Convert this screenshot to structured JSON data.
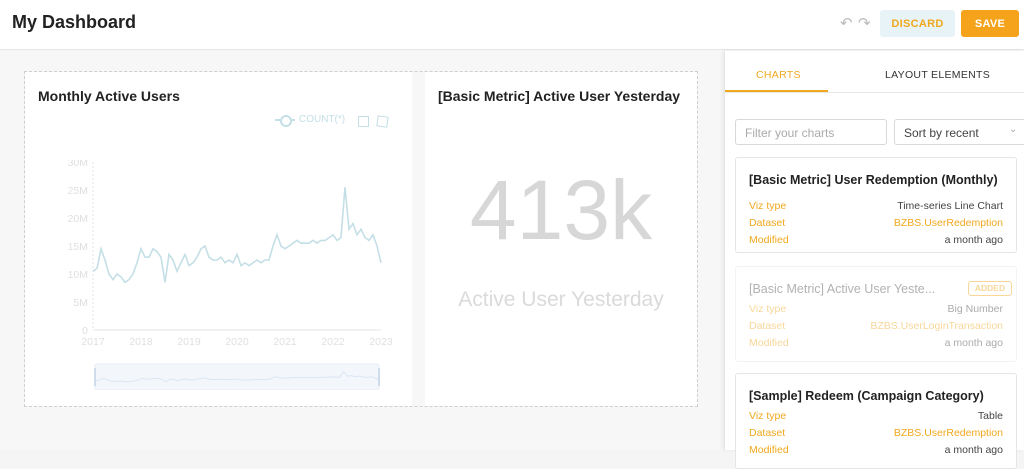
{
  "header": {
    "title": "My Dashboard",
    "undo_icon": "undo-icon",
    "redo_icon": "redo-icon",
    "discard_label": "DISCARD",
    "save_label": "SAVE"
  },
  "colors": {
    "accent": "#f5a31a",
    "series": "#c4dfe6"
  },
  "cards": {
    "mau": {
      "title": "Monthly Active Users",
      "legend": "COUNT(*)"
    },
    "metric": {
      "title": "[Basic Metric] Active User Yesterday",
      "value": "413k",
      "subheader": "Active User Yesterday"
    }
  },
  "chart_data": {
    "type": "line",
    "title": "Monthly Active Users",
    "series": [
      {
        "name": "COUNT(*)",
        "x": [
          "2017-01",
          "2017-02",
          "2017-03",
          "2017-04",
          "2017-05",
          "2017-06",
          "2017-07",
          "2017-08",
          "2017-09",
          "2017-10",
          "2017-11",
          "2017-12",
          "2018-01",
          "2018-02",
          "2018-03",
          "2018-04",
          "2018-05",
          "2018-06",
          "2018-07",
          "2018-08",
          "2018-09",
          "2018-10",
          "2018-11",
          "2018-12",
          "2019-01",
          "2019-02",
          "2019-03",
          "2019-04",
          "2019-05",
          "2019-06",
          "2019-07",
          "2019-08",
          "2019-09",
          "2019-10",
          "2019-11",
          "2019-12",
          "2020-01",
          "2020-02",
          "2020-03",
          "2020-04",
          "2020-05",
          "2020-06",
          "2020-07",
          "2020-08",
          "2020-09",
          "2020-10",
          "2020-11",
          "2020-12",
          "2021-01",
          "2021-02",
          "2021-03",
          "2021-04",
          "2021-05",
          "2021-06",
          "2021-07",
          "2021-08",
          "2021-09",
          "2021-10",
          "2021-11",
          "2021-12",
          "2022-01",
          "2022-02",
          "2022-03",
          "2022-04",
          "2022-05",
          "2022-06",
          "2022-07",
          "2022-08",
          "2022-09",
          "2022-10",
          "2022-11",
          "2022-12",
          "2023-01"
        ],
        "values": [
          10.5,
          11,
          14.5,
          12.5,
          10,
          9,
          10,
          9.5,
          8.5,
          9,
          10,
          12,
          14.5,
          13,
          13,
          14.5,
          14,
          13,
          8.5,
          13.5,
          12.5,
          10.5,
          12,
          13.5,
          11.5,
          12,
          13,
          14.5,
          15,
          13,
          12.5,
          12.5,
          13,
          12,
          12.5,
          12,
          13.5,
          11.5,
          12,
          11.5,
          12,
          12.5,
          12,
          12.5,
          12.5,
          15,
          17,
          15,
          14.5,
          15,
          15.5,
          16,
          15.5,
          15.5,
          15.5,
          16,
          15.5,
          16,
          16,
          16.5,
          17,
          16,
          16.5,
          25.5,
          18,
          19,
          17,
          18,
          16.5,
          16,
          17,
          15,
          12
        ]
      }
    ],
    "xlabel": "",
    "ylabel": "",
    "x_ticks": [
      "2017",
      "2018",
      "2019",
      "2020",
      "2021",
      "2022",
      "2023"
    ],
    "y_ticks": [
      "0",
      "5M",
      "10M",
      "15M",
      "20M",
      "25M",
      "30M"
    ],
    "ylim": [
      0,
      30
    ],
    "y_unit": "M",
    "grid": false,
    "legend": "top-right"
  },
  "sidebar": {
    "tabs": [
      "CHARTS",
      "LAYOUT ELEMENTS"
    ],
    "filter_placeholder": "Filter your charts",
    "sort_value": "Sort by recent",
    "labels": {
      "viz_type": "Viz type",
      "dataset": "Dataset",
      "modified": "Modified"
    },
    "charts": [
      {
        "title": "[Basic Metric] User Redemption (Monthly)",
        "viz_type": "Time-series Line Chart",
        "dataset": "BZBS.UserRedemption",
        "modified": "a month ago",
        "added": ""
      },
      {
        "title": "[Basic Metric] Active User Yeste...",
        "viz_type": "Big Number",
        "dataset": "BZBS.UserLoginTransaction",
        "modified": "a month ago",
        "added": "ADDED"
      },
      {
        "title": "[Sample] Redeem (Campaign Category)",
        "viz_type": "Table",
        "dataset": "BZBS.UserRedemption",
        "modified": "a month ago",
        "added": ""
      }
    ]
  }
}
